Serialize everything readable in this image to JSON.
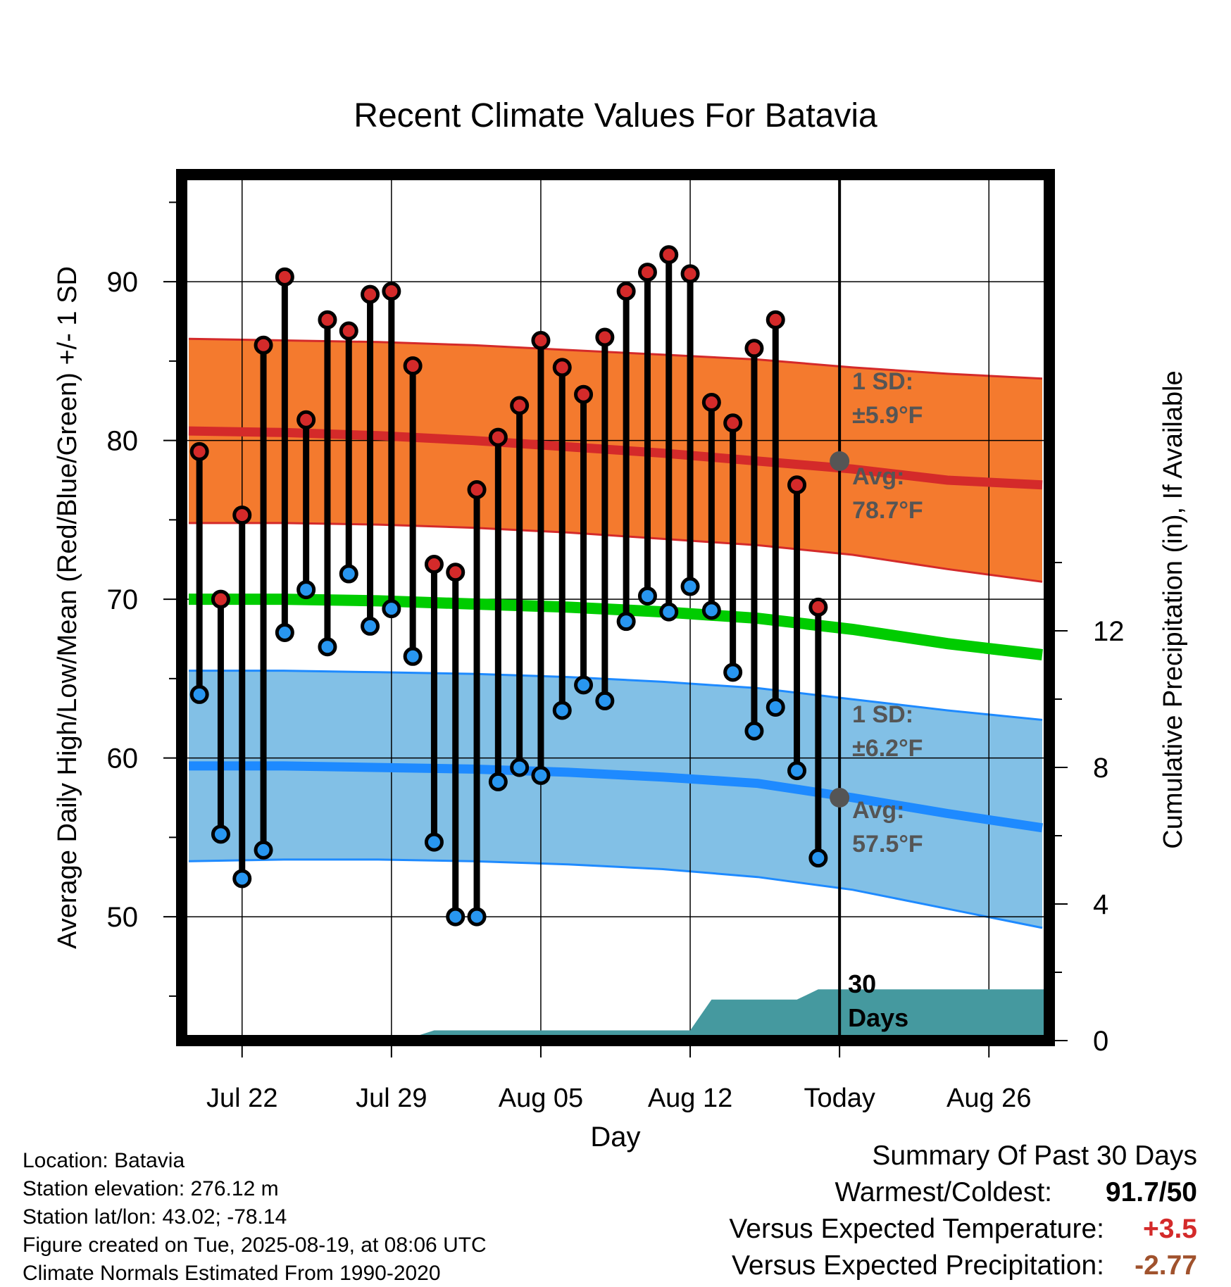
{
  "chart_data": {
    "type": "line",
    "title": "Recent Climate Values For Batavia",
    "xlabel": "Day",
    "ylabel": "Average Daily High/Low/Mean (Red/Blue/Green) +/- 1 SD",
    "y2label": "Cumulative Precipitation (in), If Available",
    "x_ticks": [
      "Jul 22",
      "Jul 29",
      "Aug 05",
      "Aug 12",
      "Today",
      "Aug 26"
    ],
    "y_ticks": [
      50,
      60,
      70,
      80,
      90
    ],
    "y2_ticks": [
      0,
      4,
      8,
      12
    ],
    "grid": true,
    "today_label": "30\nDays",
    "daily": [
      {
        "high": 79.3,
        "low": 64.0
      },
      {
        "high": 70.0,
        "low": 55.2
      },
      {
        "high": 75.3,
        "low": 52.4
      },
      {
        "high": 86.0,
        "low": 54.2
      },
      {
        "high": 90.3,
        "low": 67.9
      },
      {
        "high": 81.3,
        "low": 70.6
      },
      {
        "high": 87.6,
        "low": 67.0
      },
      {
        "high": 86.9,
        "low": 71.6
      },
      {
        "high": 89.2,
        "low": 68.3
      },
      {
        "high": 89.4,
        "low": 69.4
      },
      {
        "high": 84.7,
        "low": 66.4
      },
      {
        "high": 72.2,
        "low": 54.7
      },
      {
        "high": 71.7,
        "low": 50.0
      },
      {
        "high": 76.9,
        "low": 50.0
      },
      {
        "high": 80.2,
        "low": 58.5
      },
      {
        "high": 82.2,
        "low": 59.4
      },
      {
        "high": 86.3,
        "low": 58.9
      },
      {
        "high": 84.6,
        "low": 63.0
      },
      {
        "high": 82.9,
        "low": 64.6
      },
      {
        "high": 86.5,
        "low": 63.6
      },
      {
        "high": 89.4,
        "low": 68.6
      },
      {
        "high": 90.6,
        "low": 70.2
      },
      {
        "high": 91.7,
        "low": 69.2
      },
      {
        "high": 90.5,
        "low": 70.8
      },
      {
        "high": 82.4,
        "low": 69.3
      },
      {
        "high": 81.1,
        "low": 65.4
      },
      {
        "high": 85.8,
        "low": 61.7
      },
      {
        "high": 87.6,
        "low": 63.2
      },
      {
        "high": 77.2,
        "low": 59.2
      },
      {
        "high": 69.5,
        "low": 53.7
      }
    ],
    "normals": {
      "avg_high": [
        80.6,
        80.5,
        80.3,
        80.0,
        79.6,
        79.2,
        78.7,
        78.2,
        77.5,
        77.2
      ],
      "avg_low": [
        59.5,
        59.5,
        59.4,
        59.3,
        59.1,
        58.8,
        58.4,
        57.5,
        56.5,
        55.6
      ],
      "avg_mean": [
        70.0,
        70.0,
        69.9,
        69.7,
        69.5,
        69.2,
        68.8,
        68.1,
        67.2,
        66.5
      ],
      "high_sd_upper": [
        86.4,
        86.3,
        86.2,
        86.0,
        85.7,
        85.4,
        85.1,
        84.6,
        84.2,
        83.9
      ],
      "high_sd_lower": [
        74.8,
        74.8,
        74.7,
        74.5,
        74.2,
        73.8,
        73.4,
        72.8,
        71.9,
        71.1
      ],
      "low_sd_upper": [
        65.5,
        65.5,
        65.4,
        65.3,
        65.1,
        64.8,
        64.4,
        63.7,
        63.0,
        62.4
      ],
      "low_sd_lower": [
        53.5,
        53.6,
        53.6,
        53.5,
        53.3,
        53.0,
        52.5,
        51.7,
        50.5,
        49.3
      ]
    },
    "precip_cumulative": [
      {
        "day": 0,
        "value": 0.0
      },
      {
        "day": 7,
        "value": 0.0
      },
      {
        "day": 10,
        "value": 0.1
      },
      {
        "day": 11,
        "value": 0.3
      },
      {
        "day": 23,
        "value": 0.3
      },
      {
        "day": 24,
        "value": 1.2
      },
      {
        "day": 28,
        "value": 1.2
      },
      {
        "day": 29,
        "value": 1.5
      },
      {
        "day": 40,
        "value": 1.5
      }
    ],
    "annotations": {
      "high_sd": "1 SD:\n±5.9°F",
      "high_avg": "Avg:\n78.7°F",
      "low_sd": "1 SD:\n±6.2°F",
      "low_avg": "Avg:\n57.5°F"
    },
    "today_high_avg": 78.7,
    "today_low_avg": 57.5
  },
  "footer": {
    "location": "Location: Batavia",
    "elevation": "Station elevation: 276.12 m",
    "latlon": "Station lat/lon: 43.02; -78.14",
    "created": "Figure created on Tue, 2025-08-19, at 08:06 UTC",
    "normals": "Climate Normals Estimated From 1990-2020"
  },
  "summary": {
    "title": "Summary Of Past 30 Days",
    "warmest_label": "Warmest/Coldest:",
    "warmest_value": "91.7/50",
    "temp_label": "Versus Expected Temperature:",
    "temp_value": "+3.5",
    "precip_label": "Versus Expected Precipitation:",
    "precip_value": "-2.77"
  },
  "colors": {
    "high_band": "#f47a2e",
    "high_line": "#d42a2a",
    "low_band": "#82c0e6",
    "low_line": "#1e8aff",
    "mean_line": "#00cc00",
    "precip_fill": "#45999f",
    "high_dot": "#d42a2a",
    "low_dot": "#2896f0",
    "annotation_text": "#555555",
    "temp_value": "#d42a2a",
    "precip_value": "#a0522d"
  }
}
